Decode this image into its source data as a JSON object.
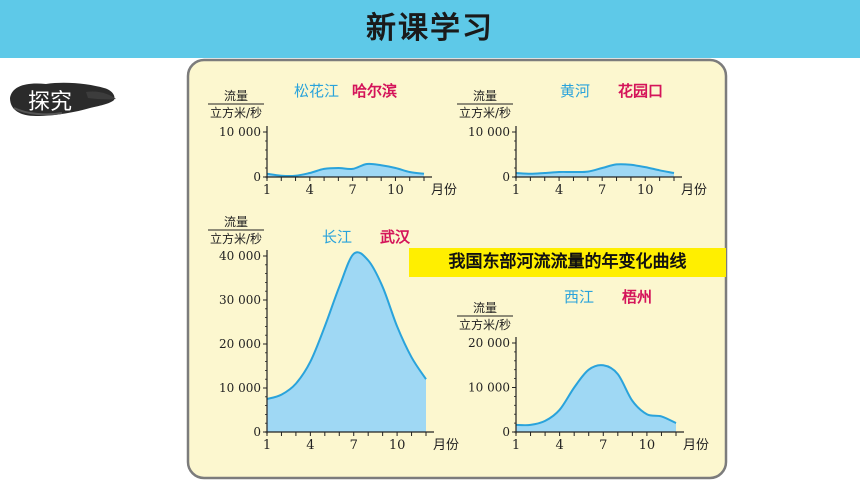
{
  "header": {
    "title": "新课学习",
    "bg": "#5ec9e8"
  },
  "badge": {
    "label": "探究"
  },
  "caption": "我国东部河流流量的年变化曲线",
  "chart_data": [
    {
      "type": "area",
      "river": "松花江",
      "station": "哈尔滨",
      "ylabel_top": "流量",
      "ylabel_bottom": "立方米/秒",
      "yticks": [
        "10 000",
        "0"
      ],
      "xticks": [
        "1",
        "4",
        "7",
        "10"
      ],
      "xunit": "月份",
      "ylim": [
        0,
        10000
      ],
      "xlim": [
        1,
        12
      ],
      "x": [
        1,
        2,
        3,
        4,
        5,
        6,
        7,
        8,
        9,
        10,
        11,
        12
      ],
      "y": [
        700,
        300,
        300,
        900,
        1800,
        2000,
        1800,
        2900,
        2600,
        2000,
        1100,
        700
      ]
    },
    {
      "type": "area",
      "river": "黄河",
      "station": "花园口",
      "ylabel_top": "流量",
      "ylabel_bottom": "立方米/秒",
      "yticks": [
        "10 000",
        "0"
      ],
      "xticks": [
        "1",
        "4",
        "7",
        "10"
      ],
      "xunit": "月份",
      "ylim": [
        0,
        10000
      ],
      "xlim": [
        1,
        12
      ],
      "x": [
        1,
        2,
        3,
        4,
        5,
        6,
        7,
        8,
        9,
        10,
        11,
        12
      ],
      "y": [
        900,
        700,
        900,
        1100,
        1100,
        1200,
        2000,
        2800,
        2700,
        2200,
        1500,
        900
      ]
    },
    {
      "type": "area",
      "river": "长江",
      "station": "武汉",
      "ylabel_top": "流量",
      "ylabel_bottom": "立方米/秒",
      "yticks": [
        "40 000",
        "30 000",
        "20 000",
        "10 000",
        "0"
      ],
      "xticks": [
        "1",
        "4",
        "7",
        "10"
      ],
      "xunit": "月份",
      "ylim": [
        0,
        40000
      ],
      "xlim": [
        1,
        12
      ],
      "x": [
        1,
        2,
        3,
        4,
        5,
        6,
        7,
        8,
        9,
        10,
        11,
        12
      ],
      "y": [
        7500,
        8500,
        11000,
        16000,
        24000,
        33000,
        40500,
        39000,
        33000,
        24000,
        17000,
        12000
      ]
    },
    {
      "type": "area",
      "river": "西江",
      "station": "梧州",
      "ylabel_top": "流量",
      "ylabel_bottom": "立方米/秒",
      "yticks": [
        "20 000",
        "10 000",
        "0"
      ],
      "xticks": [
        "1",
        "4",
        "7",
        "10"
      ],
      "xunit": "月份",
      "ylim": [
        0,
        20000
      ],
      "xlim": [
        1,
        12
      ],
      "x": [
        1,
        2,
        3,
        4,
        5,
        6,
        7,
        8,
        9,
        10,
        11,
        12
      ],
      "y": [
        1600,
        1600,
        2500,
        5000,
        10000,
        14000,
        15000,
        13000,
        7000,
        4000,
        3500,
        2000
      ]
    }
  ],
  "colors": {
    "curve": "#2aa3db",
    "fill": "#9fd8f4",
    "panel": "#fcf7cf",
    "river": "#2aa3db",
    "station": "#d4145a",
    "caption_bg": "#ffef00"
  }
}
